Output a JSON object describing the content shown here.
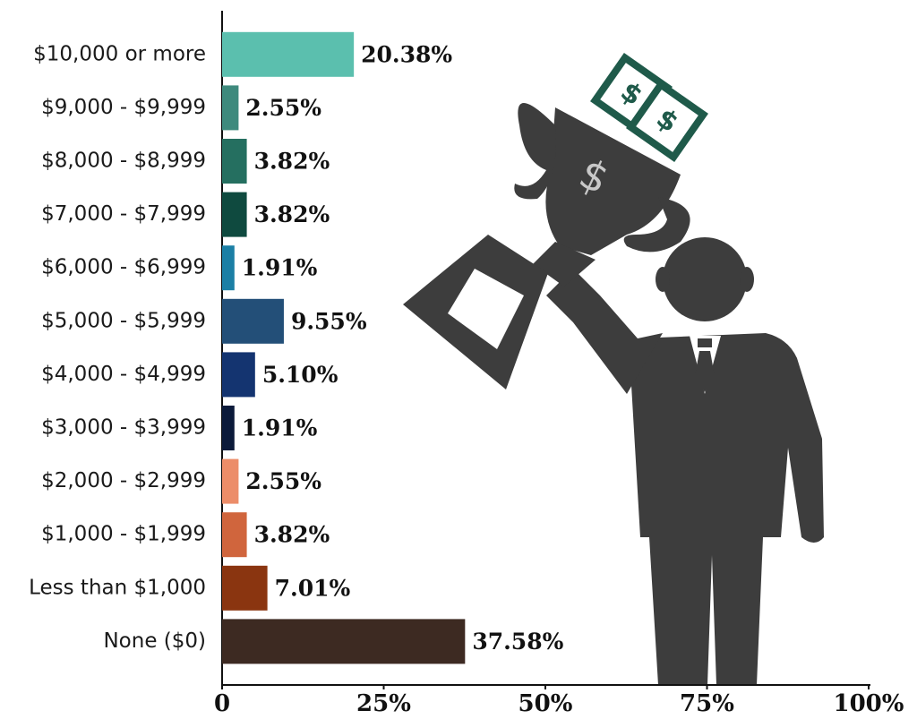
{
  "chart_data": {
    "type": "bar",
    "orientation": "horizontal",
    "categories": [
      "$10,000 or more",
      "$9,000 - $9,999",
      "$8,000 - $8,999",
      "$7,000 - $7,999",
      "$6,000 - $6,999",
      "$5,000 - $5,999",
      "$4,000 - $4,999",
      "$3,000 - $3,999",
      "$2,000 - $2,999",
      "$1,000 - $1,999",
      "Less than $1,000",
      "None ($0)"
    ],
    "values": [
      20.38,
      2.55,
      3.82,
      3.82,
      1.91,
      9.55,
      5.1,
      1.91,
      2.55,
      3.82,
      7.01,
      37.58
    ],
    "value_labels": [
      "20.38%",
      "2.55%",
      "3.82%",
      "3.82%",
      "1.91%",
      "9.55%",
      "5.10%",
      "1.91%",
      "2.55%",
      "3.82%",
      "7.01%",
      "37.58%"
    ],
    "colors": [
      "#5bbfae",
      "#3e8a7d",
      "#256f60",
      "#0f4a3f",
      "#1b7fa5",
      "#234f78",
      "#143470",
      "#0b1a3a",
      "#ec8d69",
      "#d0653d",
      "#8a3510",
      "#3d2a22"
    ],
    "xlim": [
      0,
      100
    ],
    "xticks": [
      0,
      {
        "value": 25,
        "label": "25%"
      },
      {
        "value": 50,
        "label": "50%"
      },
      {
        "value": 75,
        "label": "75%"
      },
      {
        "value": 100,
        "label": "100%"
      }
    ]
  }
}
